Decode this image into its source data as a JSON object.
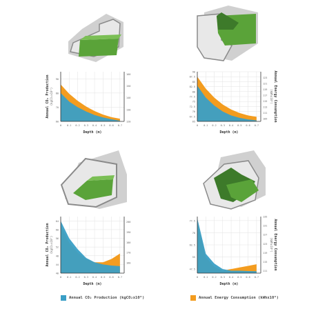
{
  "colors": {
    "production": "#3a9fc6",
    "energy": "#f39c1f",
    "green": "#5aa339",
    "block_light": "#e3e3e3",
    "block_dark": "#c8c8c8",
    "outline": "#777777",
    "axis": "#333333",
    "grid": "#e2e2e2"
  },
  "legend": {
    "production": "Annual CO₂ Production (kgCO₂x10⁶)",
    "energy": "Annual Energy Consumption (kWhx10⁶)"
  },
  "chart_data": [
    {
      "type": "area",
      "id": "top-left",
      "xlabel": "Depth (m)",
      "ylabel": "Annual CO₂ Production",
      "ylabel_units": "(kgCO₂x10⁶)",
      "y2label": "",
      "x": [
        0,
        0.1,
        0.2,
        0.3,
        0.4,
        0.5,
        0.6,
        0.7
      ],
      "xlim": [
        0,
        0.75
      ],
      "xticks": [
        "0",
        "0.1",
        "0.2",
        "0.3",
        "0.4",
        "0.5",
        "0.6",
        "0.7"
      ],
      "ylim": [
        60,
        95
      ],
      "yticks": [
        "60",
        "70",
        "80",
        "90"
      ],
      "y2lim": [
        120,
        162
      ],
      "y2ticks": [
        "120",
        "130",
        "140",
        "150",
        "160"
      ],
      "series": [
        {
          "values": [
            80,
            74,
            70,
            67,
            64.5,
            62.8,
            61.5,
            60.5
          ]
        },
        {
          "values": [
            86,
            79.5,
            74.5,
            70.5,
            67.3,
            64.8,
            63,
            61.9
          ]
        }
      ]
    },
    {
      "type": "area",
      "id": "top-right",
      "xlabel": "Depth (m)",
      "ylabel": "",
      "y2label": "Annual Energy Consumption",
      "y2label_units": "(kWhx10⁶)",
      "x": [
        0,
        0.1,
        0.2,
        0.3,
        0.4,
        0.5,
        0.6,
        0.7
      ],
      "xlim": [
        0,
        0.75
      ],
      "xticks": [
        "0",
        "0.1",
        "0.2",
        "0.3",
        "0.4",
        "0.5",
        "0.6",
        "0.7"
      ],
      "ylim": [
        65,
        90
      ],
      "yticks": [
        "65",
        "67.5",
        "70",
        "72.5",
        "75",
        "77.5",
        "80",
        "82.5",
        "85",
        "87.5",
        "90"
      ],
      "y2lim": [
        108,
        125
      ],
      "y2ticks": [
        "109",
        "111",
        "113",
        "115",
        "117",
        "119",
        "121",
        "123"
      ],
      "series": [
        {
          "values": [
            83,
            77,
            73,
            70,
            68,
            66.8,
            66,
            65.5
          ]
        },
        {
          "values": [
            87.5,
            81.5,
            77,
            73.5,
            71,
            69.2,
            68,
            67.3
          ]
        }
      ]
    },
    {
      "type": "area",
      "id": "bottom-left",
      "xlabel": "Depth (m)",
      "ylabel": "Annual CO₂ Production",
      "ylabel_units": "(kgCO₂x10⁶)",
      "y2label": "",
      "x": [
        0,
        0.1,
        0.2,
        0.3,
        0.4,
        0.5,
        0.6,
        0.7
      ],
      "xlim": [
        0,
        0.75
      ],
      "xticks": [
        "0",
        "0.1",
        "0.2",
        "0.3",
        "0.4",
        "0.5",
        "0.6",
        "0.7"
      ],
      "ylim": [
        40,
        66
      ],
      "yticks": [
        "40",
        "44",
        "48",
        "52",
        "56",
        "60",
        "64"
      ],
      "y2lim": [
        150,
        205
      ],
      "y2ticks": [
        "160",
        "170",
        "180",
        "190",
        "200"
      ],
      "series": [
        {
          "values": [
            64,
            56,
            51,
            47,
            45,
            44,
            43.5,
            43.2
          ]
        },
        {
          "values": [
            62,
            54,
            49.5,
            46.5,
            45,
            45,
            46.5,
            49
          ]
        }
      ]
    },
    {
      "type": "area",
      "id": "bottom-right",
      "xlabel": "Depth (m)",
      "ylabel": "",
      "y2label": "Annual Energy Consumption",
      "y2label_units": "(kWhx10⁶)",
      "x": [
        0,
        0.1,
        0.2,
        0.3,
        0.4,
        0.5,
        0.6,
        0.7
      ],
      "xlim": [
        0,
        0.75
      ],
      "xticks": [
        "0",
        "0.1",
        "0.2",
        "0.3",
        "0.4",
        "0.5",
        "0.6",
        "0.7"
      ],
      "ylim": [
        45,
        80
      ],
      "yticks": [
        "47.5",
        "55",
        "62.5",
        "70",
        "77.5"
      ],
      "y2lim": [
        110,
        135
      ],
      "y2ticks": [
        "111",
        "115",
        "119",
        "123",
        "127",
        "131",
        "135"
      ],
      "series": [
        {
          "values": [
            79,
            57,
            51,
            47.5,
            46.5,
            46.5,
            46.3,
            46.2
          ]
        },
        {
          "values": [
            77,
            55,
            49,
            46.5,
            47.5,
            48.5,
            49.5,
            50.5
          ]
        }
      ]
    }
  ]
}
